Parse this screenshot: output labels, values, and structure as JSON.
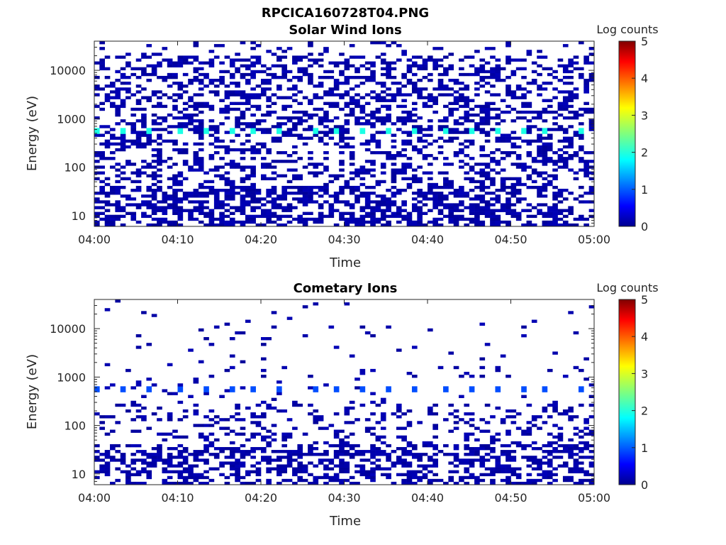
{
  "figure": {
    "title": "RPCICA160728T04.PNG"
  },
  "chart_data": [
    {
      "type": "heatmap",
      "title": "Solar Wind Ions",
      "xlabel": "Time",
      "ylabel": "Energy (eV)",
      "x_ticks": [
        "04:00",
        "04:10",
        "04:20",
        "04:30",
        "04:40",
        "04:50",
        "05:00"
      ],
      "x_range": [
        "04:00",
        "05:00"
      ],
      "y_scale": "log",
      "y_ticks": [
        10,
        100,
        1000,
        10000
      ],
      "y_tick_labels": [
        "10",
        "100",
        "1000",
        "10000"
      ],
      "y_range": [
        6,
        40000
      ],
      "colorbar": {
        "label": "Log counts",
        "range": [
          0,
          5
        ],
        "ticks": [
          "0",
          "1",
          "2",
          "3",
          "4",
          "5"
        ],
        "colormap": "jet"
      },
      "description_data": {
        "time_bins": 96,
        "peak_energy_eV": 600,
        "peak_log_counts": 2.0,
        "peak_times": [
          "04:00",
          "04:03",
          "04:06",
          "04:10",
          "04:13",
          "04:16",
          "04:19",
          "04:22",
          "04:26",
          "04:29",
          "04:32",
          "04:35",
          "04:38",
          "04:42",
          "04:45",
          "04:48",
          "04:51",
          "04:54",
          "04:58"
        ],
        "background_log_counts": 0.2,
        "low_energy_dense_below_eV": 40
      }
    },
    {
      "type": "heatmap",
      "title": "Cometary Ions",
      "xlabel": "Time",
      "ylabel": "Energy (eV)",
      "x_ticks": [
        "04:00",
        "04:10",
        "04:20",
        "04:30",
        "04:40",
        "04:50",
        "05:00"
      ],
      "x_range": [
        "04:00",
        "05:00"
      ],
      "y_scale": "log",
      "y_ticks": [
        10,
        100,
        1000,
        10000
      ],
      "y_tick_labels": [
        "10",
        "100",
        "1000",
        "10000"
      ],
      "y_range": [
        6,
        40000
      ],
      "colorbar": {
        "label": "Log counts",
        "range": [
          0,
          5
        ],
        "ticks": [
          "0",
          "1",
          "2",
          "3",
          "4",
          "5"
        ],
        "colormap": "jet"
      },
      "description_data": {
        "time_bins": 96,
        "peak_energy_eV": 600,
        "peak_log_counts": 1.0,
        "peak_times": [
          "04:00",
          "04:03",
          "04:06",
          "04:10",
          "04:13",
          "04:16",
          "04:19",
          "04:22",
          "04:26",
          "04:29",
          "04:32",
          "04:35",
          "04:38",
          "04:42",
          "04:45",
          "04:48",
          "04:51",
          "04:54",
          "04:58"
        ],
        "background_log_counts": 0.2,
        "low_energy_dense_below_eV": 40
      }
    }
  ]
}
